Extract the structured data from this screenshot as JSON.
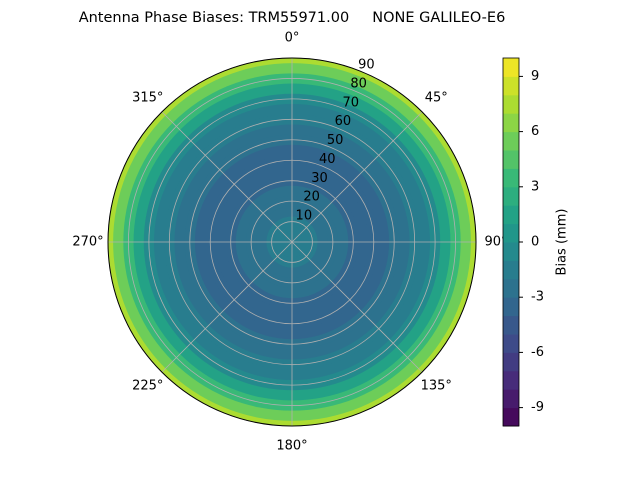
{
  "chart_data": {
    "type": "polar-contour",
    "title": "Antenna Phase Biases: TRM55971.00     NONE GALILEO-E6",
    "r": [
      0,
      5,
      10,
      15,
      20,
      25,
      30,
      35,
      40,
      45,
      50,
      55,
      60,
      65,
      70,
      75,
      80,
      85,
      90
    ],
    "values": [
      -1.5,
      -1.6,
      -2,
      -2.3,
      -2.6,
      -2.9,
      -3.1,
      -3.3,
      -3.3,
      -3.2,
      -3,
      -2.6,
      -2,
      -1.2,
      -0.2,
      1.2,
      3,
      5,
      7.5
    ],
    "rlim": [
      0,
      90
    ],
    "rticks": [
      10,
      20,
      30,
      40,
      50,
      60,
      70,
      80,
      90
    ],
    "thetaticks": [
      {
        "value": 0,
        "label": "0°"
      },
      {
        "value": 45,
        "label": "45°"
      },
      {
        "value": 90,
        "label": "90°"
      },
      {
        "value": 135,
        "label": "135°"
      },
      {
        "value": 180,
        "label": "180°"
      },
      {
        "value": 225,
        "label": "225°"
      },
      {
        "value": 270,
        "label": "270°"
      },
      {
        "value": 315,
        "label": "315°"
      }
    ],
    "colormap": "viridis",
    "clim": [
      -10,
      10
    ],
    "cticks": [
      -9,
      -6,
      -3,
      0,
      3,
      6,
      9
    ],
    "colorbar_label": "Bias (mm)",
    "grid": true
  }
}
